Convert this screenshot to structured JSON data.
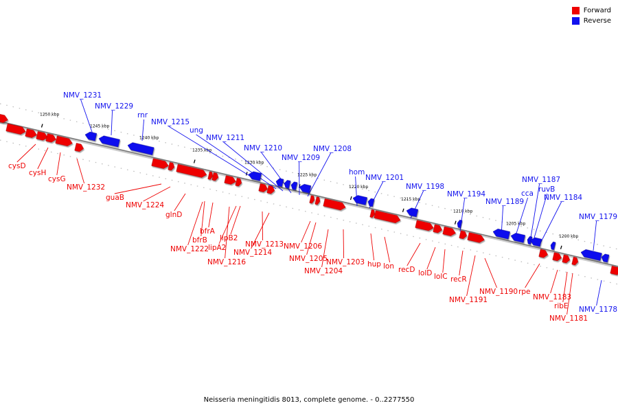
{
  "colors": {
    "forward": "#ee0000",
    "reverse": "#1111ee",
    "axis": "#999999"
  },
  "legend": {
    "forward_label": "Forward",
    "reverse_label": "Reverse"
  },
  "caption": "Neisseria meningitidis 8013, complete genome. - 0..2277550",
  "ticks": [
    "1250 kbp",
    "1245 kbp",
    "1240 kbp",
    "1235 kbp",
    "1230 kbp",
    "1225 kbp",
    "1220 kbp",
    "1215 kbp",
    "1210 kbp",
    "1205 kbp",
    "1200 kbp"
  ],
  "reverse_labels": [
    "NMV_1231",
    "NMV_1229",
    "rnr",
    "NMV_1215",
    "ung",
    "NMV_1211",
    "NMV_1210",
    "NMV_1209",
    "NMV_1208",
    "hom",
    "NMV_1201",
    "NMV_1198",
    "NMV_1194",
    "NMV_1189",
    "cca",
    "NMV_1187",
    "ruvB",
    "NMV_1184",
    "NMV_1179",
    "NMV_1178"
  ],
  "forward_labels": [
    "cysD",
    "cysH",
    "cysG",
    "NMV_1232",
    "guaB",
    "NMV_1224",
    "glnD",
    "bfrA",
    "bfrB",
    "NMV_1222",
    "lipB2",
    "lipA2",
    "NMV_1216",
    "NMV_1213",
    "NMV_1214",
    "NMV_1206",
    "NMV_1205",
    "NMV_1204",
    "NMV_1203",
    "hup",
    "lon",
    "recD",
    "lolD",
    "lolC",
    "recR",
    "NMV_1191",
    "NMV_1190",
    "rpe",
    "NMV_1183",
    "ribE",
    "NMV_1181"
  ]
}
